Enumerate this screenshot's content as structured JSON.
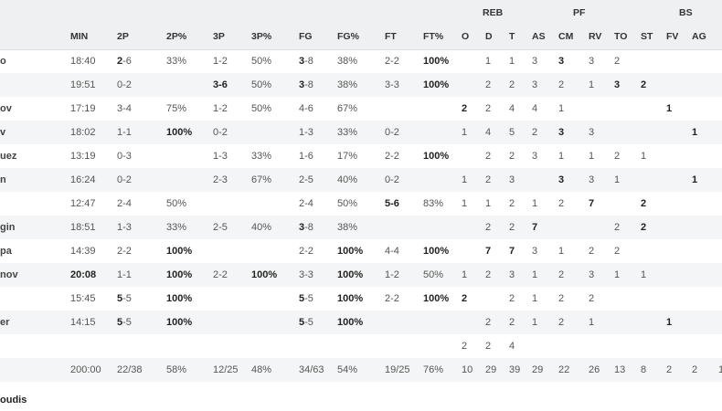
{
  "headers": {
    "groups": {
      "reb": "REB",
      "pf": "PF",
      "bs": "BS"
    },
    "columns": [
      "MIN",
      "2P",
      "2P%",
      "3P",
      "3P%",
      "FG",
      "FG%",
      "FT",
      "FT%",
      "O",
      "D",
      "T",
      "AS",
      "CM",
      "RV",
      "TO",
      "ST",
      "FV",
      "AG",
      ""
    ]
  },
  "rows": [
    {
      "name": "o",
      "cells": [
        "18:40",
        "2-6",
        "33%",
        "1-2",
        "50%",
        "3-8",
        "38%",
        "2-2",
        "100%",
        "",
        "1",
        "1",
        "3",
        "3",
        "3",
        "2",
        "",
        "",
        "",
        ""
      ]
    },
    {
      "name": "",
      "cells": [
        "19:51",
        "0-2",
        "",
        "3-6",
        "50%",
        "3-8",
        "38%",
        "3-3",
        "100%",
        "",
        "2",
        "2",
        "3",
        "2",
        "1",
        "3",
        "2",
        "",
        "",
        ""
      ]
    },
    {
      "name": "ov",
      "cells": [
        "17:19",
        "3-4",
        "75%",
        "1-2",
        "50%",
        "4-6",
        "67%",
        "",
        "",
        "2",
        "2",
        "4",
        "4",
        "1",
        "",
        "",
        "",
        "1",
        "",
        ""
      ]
    },
    {
      "name": "v",
      "cells": [
        "18:02",
        "1-1",
        "100%",
        "0-2",
        "",
        "1-3",
        "33%",
        "0-2",
        "",
        "1",
        "4",
        "5",
        "2",
        "3",
        "3",
        "",
        "",
        "",
        "1",
        ""
      ]
    },
    {
      "name": "uez",
      "cells": [
        "13:19",
        "0-3",
        "",
        "1-3",
        "33%",
        "1-6",
        "17%",
        "2-2",
        "100%",
        "",
        "2",
        "2",
        "3",
        "1",
        "1",
        "2",
        "1",
        "",
        "",
        ""
      ]
    },
    {
      "name": "n",
      "cells": [
        "16:24",
        "0-2",
        "",
        "2-3",
        "67%",
        "2-5",
        "40%",
        "0-2",
        "",
        "1",
        "2",
        "3",
        "",
        "3",
        "3",
        "1",
        "",
        "",
        "1",
        ""
      ]
    },
    {
      "name": "",
      "cells": [
        "12:47",
        "2-4",
        "50%",
        "",
        "",
        "2-4",
        "50%",
        "5-6",
        "83%",
        "1",
        "1",
        "2",
        "1",
        "2",
        "7",
        "",
        "2",
        "",
        "",
        ""
      ]
    },
    {
      "name": "gin",
      "cells": [
        "18:51",
        "1-3",
        "33%",
        "2-5",
        "40%",
        "3-8",
        "38%",
        "",
        "",
        "",
        "2",
        "2",
        "7",
        "",
        "",
        "2",
        "2",
        "",
        "",
        ""
      ]
    },
    {
      "name": "pa",
      "cells": [
        "14:39",
        "2-2",
        "100%",
        "",
        "",
        "2-2",
        "100%",
        "4-4",
        "100%",
        "",
        "7",
        "7",
        "3",
        "1",
        "2",
        "2",
        "",
        "",
        "",
        ""
      ]
    },
    {
      "name": "nov",
      "cells": [
        "20:08",
        "1-1",
        "100%",
        "2-2",
        "100%",
        "3-3",
        "100%",
        "1-2",
        "50%",
        "1",
        "2",
        "3",
        "1",
        "2",
        "3",
        "1",
        "1",
        "",
        "",
        ""
      ]
    },
    {
      "name": "",
      "cells": [
        "15:45",
        "5-5",
        "100%",
        "",
        "",
        "5-5",
        "100%",
        "2-2",
        "100%",
        "2",
        "",
        "2",
        "1",
        "2",
        "2",
        "",
        "",
        "",
        "",
        ""
      ]
    },
    {
      "name": "er",
      "cells": [
        "14:15",
        "5-5",
        "100%",
        "",
        "",
        "5-5",
        "100%",
        "",
        "",
        "",
        "2",
        "2",
        "1",
        "2",
        "1",
        "",
        "",
        "1",
        "",
        ""
      ]
    },
    {
      "name": "",
      "cells": [
        "",
        "",
        "",
        "",
        "",
        "",
        "",
        "",
        "",
        "2",
        "2",
        "4",
        "",
        "",
        "",
        "",
        "",
        "",
        "",
        ""
      ]
    },
    {
      "name": "",
      "cells": [
        "200:00",
        "22/38",
        "58%",
        "12/25",
        "48%",
        "34/63",
        "54%",
        "19/25",
        "76%",
        "10",
        "29",
        "39",
        "29",
        "22",
        "26",
        "13",
        "8",
        "2",
        "2",
        "1"
      ]
    }
  ],
  "coach": "oudis"
}
